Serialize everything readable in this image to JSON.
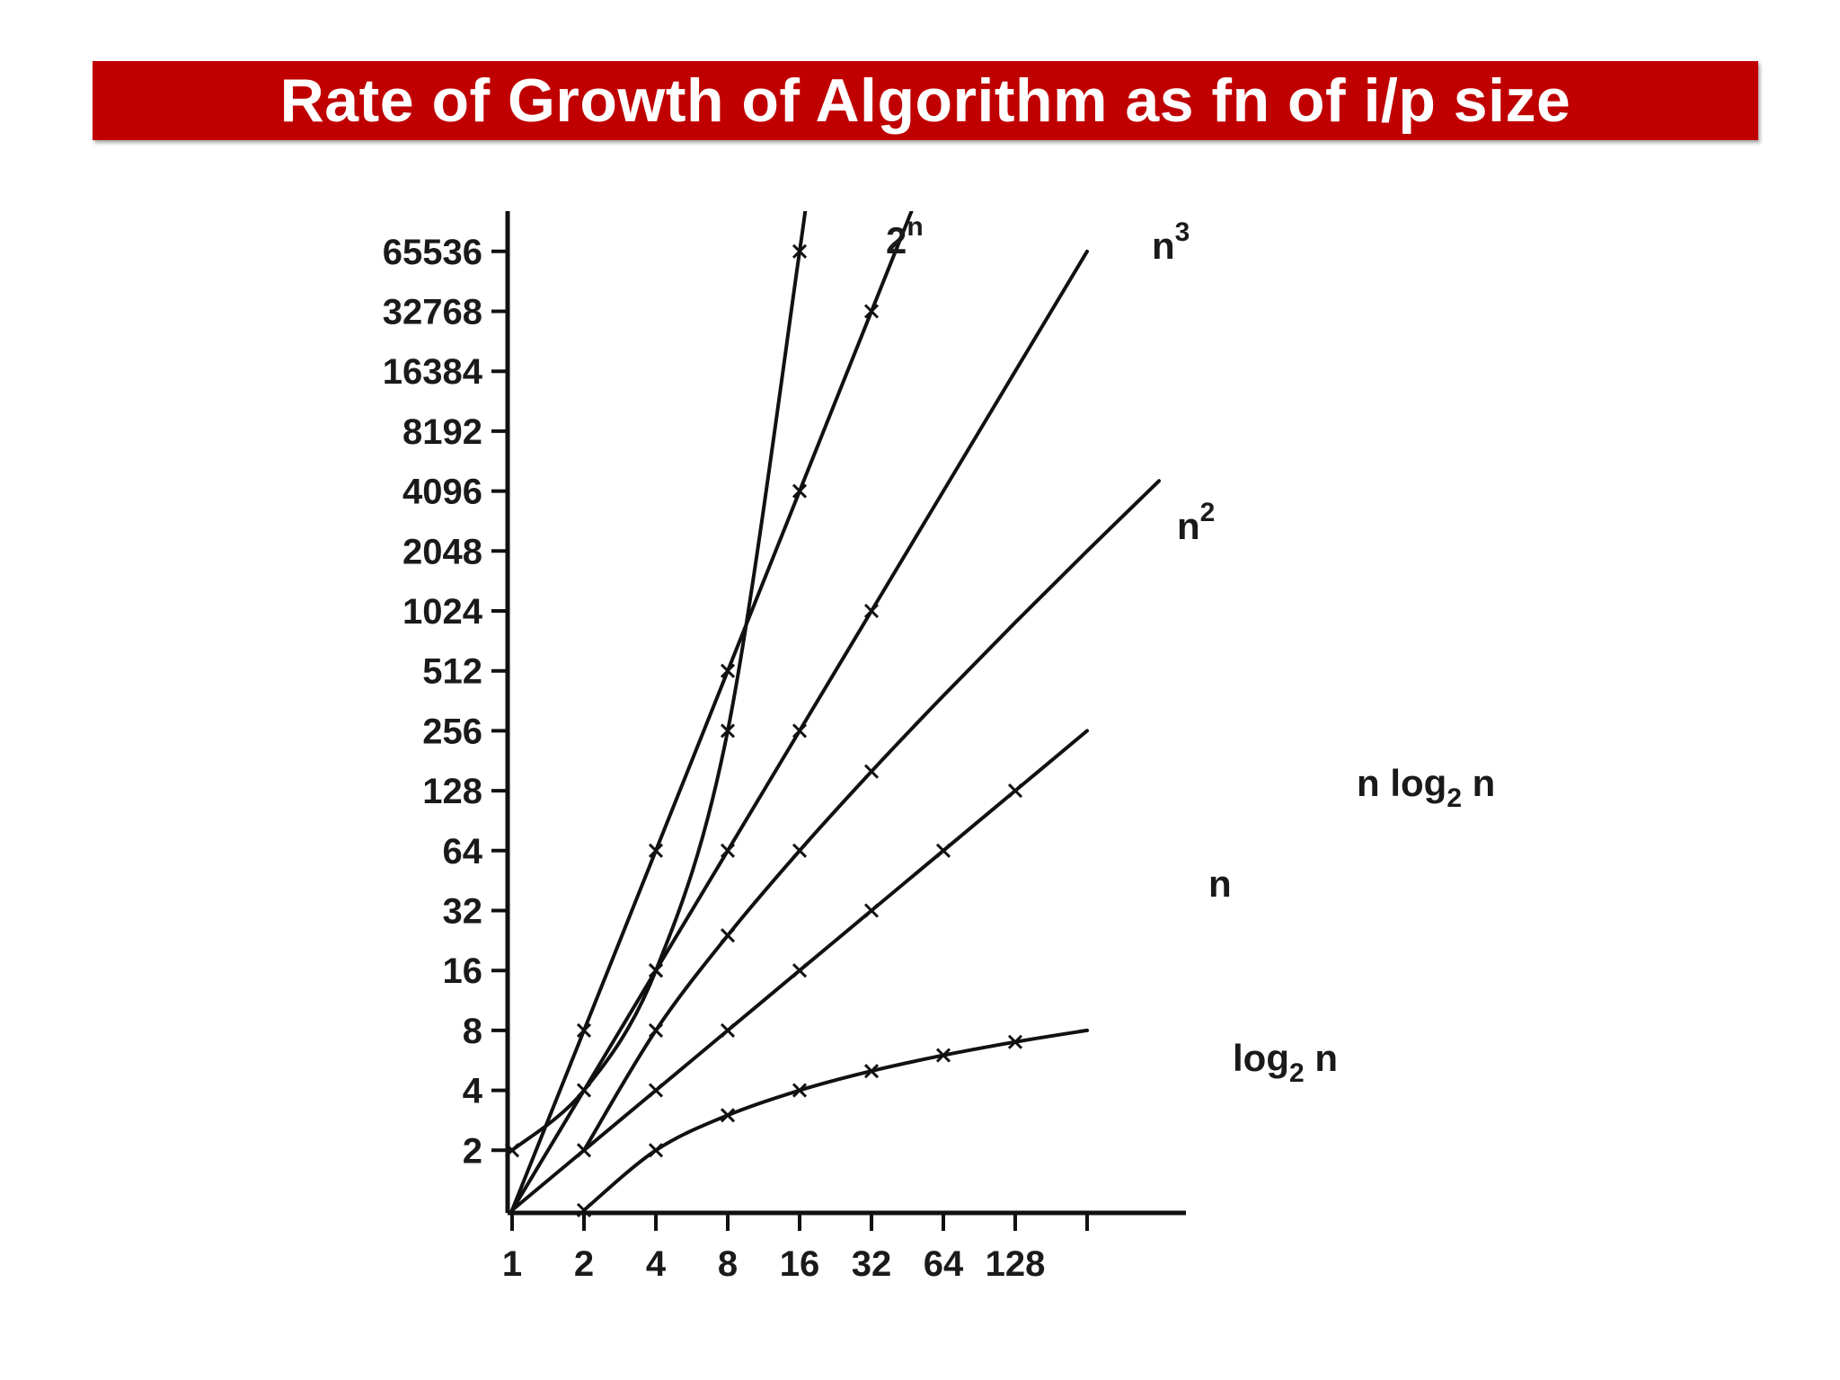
{
  "title": "Rate of Growth of Algorithm as fn of i/p size",
  "colors": {
    "banner": "#c00000",
    "banner_text": "#ffffff",
    "ink": "#111111"
  },
  "chart_data": {
    "type": "line",
    "title": "",
    "xlabel": "",
    "ylabel": "",
    "x_scale": "log2",
    "y_scale": "log2",
    "grid": false,
    "legend": "inline labels at line ends",
    "x_ticks": [
      "1",
      "2",
      "4",
      "8",
      "16",
      "32",
      "64",
      "128"
    ],
    "y_ticks": [
      "2",
      "4",
      "8",
      "16",
      "32",
      "64",
      "128",
      "256",
      "512",
      "1024",
      "2048",
      "4096",
      "8192",
      "16384",
      "32768",
      "65536"
    ],
    "xlim": [
      1,
      512
    ],
    "ylim": [
      1,
      131072
    ],
    "series": [
      {
        "name": "log",
        "subscript": "2",
        "suffix": " n",
        "x": [
          2,
          4,
          8,
          16,
          32,
          64,
          128,
          256
        ],
        "y": [
          1,
          2,
          3,
          4,
          5,
          6,
          7,
          8
        ],
        "markers": [
          2,
          4,
          8,
          16,
          32,
          64,
          128
        ]
      },
      {
        "name": "n",
        "x": [
          1,
          2,
          4,
          8,
          16,
          32,
          64,
          128,
          256
        ],
        "y": [
          1,
          2,
          4,
          8,
          16,
          32,
          64,
          128,
          256
        ],
        "markers": [
          2,
          4,
          8,
          16,
          32,
          64,
          128
        ]
      },
      {
        "name": "n log",
        "subscript": "2",
        "suffix": " n",
        "x": [
          2,
          4,
          8,
          16,
          32,
          64,
          128,
          256,
          512
        ],
        "y": [
          2,
          8,
          24,
          64,
          160,
          384,
          896,
          2048,
          4608
        ],
        "markers": [
          4,
          8,
          16,
          32
        ]
      },
      {
        "name": "n",
        "sup": "2",
        "x": [
          1,
          2,
          4,
          8,
          16,
          32,
          64,
          128,
          256
        ],
        "y": [
          1,
          4,
          16,
          64,
          256,
          1024,
          4096,
          16384,
          65536
        ],
        "markers": [
          4,
          8,
          16,
          32
        ]
      },
      {
        "name": "n",
        "sup": "3",
        "x": [
          1,
          2,
          4,
          8,
          16,
          32,
          64
        ],
        "y": [
          1,
          8,
          64,
          512,
          4096,
          32768,
          262144
        ],
        "markers": [
          2,
          4,
          8,
          16,
          32
        ]
      },
      {
        "name": "2",
        "sup": "n",
        "x": [
          1,
          2,
          4,
          8,
          16,
          17
        ],
        "y": [
          2,
          4,
          16,
          256,
          65536,
          131072
        ],
        "markers": [
          1,
          2,
          4,
          8,
          16
        ]
      }
    ]
  }
}
